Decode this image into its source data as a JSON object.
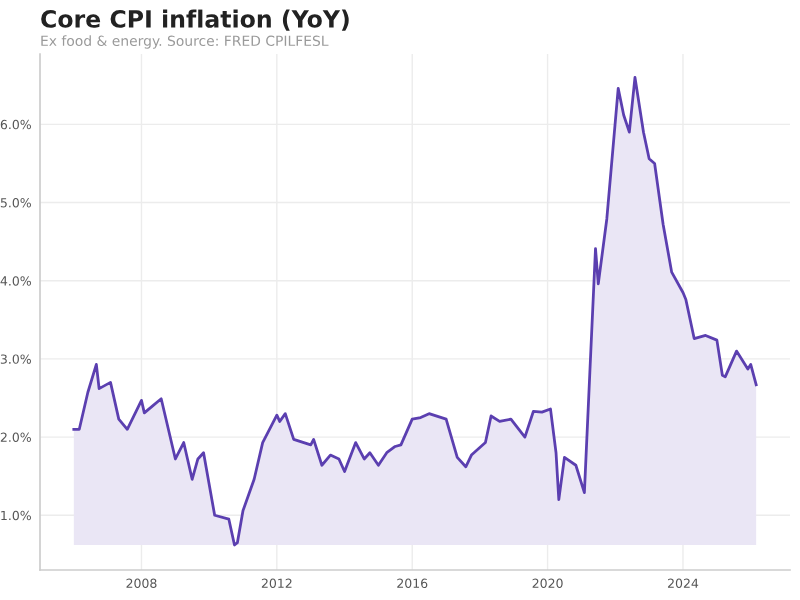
{
  "chart_data": {
    "type": "area",
    "title": "Core CPI inflation (YoY)",
    "subtitle": "Ex food & energy. Source: FRED CPILFESL",
    "x": [
      "2006-01",
      "2006-03",
      "2006-06",
      "2006-09",
      "2006-10",
      "2007-02",
      "2007-05",
      "2007-08",
      "2008-01",
      "2008-02",
      "2008-05",
      "2008-08",
      "2009-01",
      "2009-04",
      "2009-07",
      "2009-09",
      "2009-11",
      "2010-03",
      "2010-08",
      "2010-10",
      "2010-11",
      "2011-01",
      "2011-05",
      "2011-08",
      "2012-01",
      "2012-02",
      "2012-04",
      "2012-07",
      "2013-01",
      "2013-02",
      "2013-05",
      "2013-08",
      "2013-11",
      "2014-01",
      "2014-05",
      "2014-08",
      "2014-10",
      "2015-01",
      "2015-04",
      "2015-07",
      "2015-09",
      "2016-01",
      "2016-04",
      "2016-07",
      "2017-01",
      "2017-05",
      "2017-08",
      "2017-10",
      "2018-03",
      "2018-05",
      "2018-08",
      "2018-12",
      "2019-05",
      "2019-08",
      "2019-11",
      "2020-02",
      "2020-04",
      "2020-05",
      "2020-07",
      "2020-11",
      "2021-02",
      "2021-04",
      "2021-06",
      "2021-07",
      "2021-10",
      "2022-02",
      "2022-04",
      "2022-06",
      "2022-08",
      "2022-11",
      "2023-01",
      "2023-03",
      "2023-06",
      "2023-09",
      "2024-01",
      "2024-02",
      "2024-05",
      "2024-09",
      "2025-01",
      "2025-03",
      "2025-04",
      "2025-08",
      "2025-12",
      "2026-01",
      "2026-03"
    ],
    "series": [
      {
        "color": "#5b3fb0",
        "values": [
          2.1,
          2.1,
          2.57,
          2.93,
          2.62,
          2.7,
          2.23,
          2.1,
          2.47,
          2.31,
          2.4,
          2.49,
          1.72,
          1.93,
          1.46,
          1.72,
          1.8,
          1.0,
          0.95,
          0.62,
          0.65,
          1.06,
          1.46,
          1.93,
          2.28,
          2.2,
          2.3,
          1.97,
          1.9,
          1.97,
          1.64,
          1.77,
          1.72,
          1.56,
          1.93,
          1.72,
          1.8,
          1.64,
          1.8,
          1.88,
          1.9,
          2.23,
          2.25,
          2.3,
          2.23,
          1.74,
          1.62,
          1.77,
          1.93,
          2.27,
          2.2,
          2.23,
          2.0,
          2.33,
          2.32,
          2.36,
          1.8,
          1.2,
          1.74,
          1.64,
          1.29,
          2.83,
          4.41,
          3.96,
          4.79,
          6.46,
          6.12,
          5.9,
          6.6,
          5.9,
          5.56,
          5.5,
          4.72,
          4.11,
          3.85,
          3.76,
          3.26,
          3.3,
          3.24,
          2.79,
          2.77,
          3.1,
          2.87,
          2.93,
          2.67
        ]
      }
    ],
    "xlim": [
      "2005-01",
      "2027-03"
    ],
    "xticks": [
      {
        "value": "2008",
        "label": "2008"
      },
      {
        "value": "2012",
        "label": "2012"
      },
      {
        "value": "2016",
        "label": "2016"
      },
      {
        "value": "2020",
        "label": "2020"
      },
      {
        "value": "2024",
        "label": "2024"
      }
    ],
    "ylim": [
      0.3,
      6.9
    ],
    "yticks": [
      {
        "value": 1,
        "label": "1.0%"
      },
      {
        "value": 2,
        "label": "2.0%"
      },
      {
        "value": 3,
        "label": "3.0%"
      },
      {
        "value": 4,
        "label": "4.0%"
      },
      {
        "value": 5,
        "label": "5.0%"
      },
      {
        "value": 6,
        "label": "6.0%"
      }
    ],
    "grid": true
  }
}
